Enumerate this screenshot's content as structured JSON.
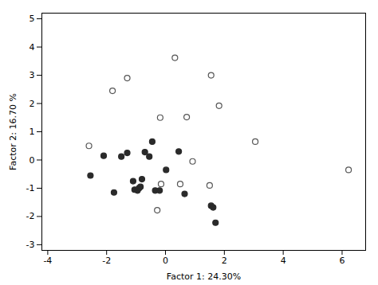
{
  "chart_data": {
    "type": "scatter",
    "xlabel": "Factor 1: 24.30%",
    "ylabel": "Factor 2: 16.70 %",
    "xlim": [
      -4.2,
      6.8
    ],
    "ylim": [
      -3.2,
      5.2
    ],
    "xticks": [
      -4,
      -2,
      0,
      2,
      4,
      6
    ],
    "yticks": [
      -3,
      -2,
      -1,
      0,
      1,
      2,
      3,
      4,
      5
    ],
    "grid": false,
    "series": [
      {
        "marker": "ring",
        "color": "#555555",
        "x": [
          -2.6,
          -1.8,
          -1.3,
          -0.18,
          0.32,
          0.72,
          0.92,
          -0.15,
          1.5,
          0.5,
          1.55,
          1.82,
          3.05,
          6.22,
          -0.28
        ],
        "values": [
          0.5,
          2.45,
          2.9,
          1.5,
          3.62,
          1.52,
          -0.05,
          -0.85,
          -0.9,
          -0.85,
          3.0,
          1.92,
          0.65,
          -0.35,
          -1.78
        ]
      },
      {
        "marker": "circle",
        "color": "#2a2a2a",
        "x": [
          -2.55,
          -2.1,
          -1.75,
          -1.5,
          -1.3,
          -1.1,
          -1.05,
          -0.95,
          -0.9,
          -0.85,
          -0.8,
          -0.7,
          -0.55,
          -0.45,
          -0.35,
          -0.2,
          0.02,
          0.45,
          0.65,
          1.55,
          1.62,
          1.7
        ],
        "values": [
          -0.55,
          0.15,
          -1.15,
          0.12,
          0.25,
          -0.75,
          -1.05,
          -1.08,
          -1.0,
          -0.95,
          -0.68,
          0.28,
          0.12,
          0.65,
          -1.08,
          -1.08,
          -0.35,
          0.3,
          -1.2,
          -1.62,
          -1.68,
          -2.22
        ]
      }
    ]
  }
}
